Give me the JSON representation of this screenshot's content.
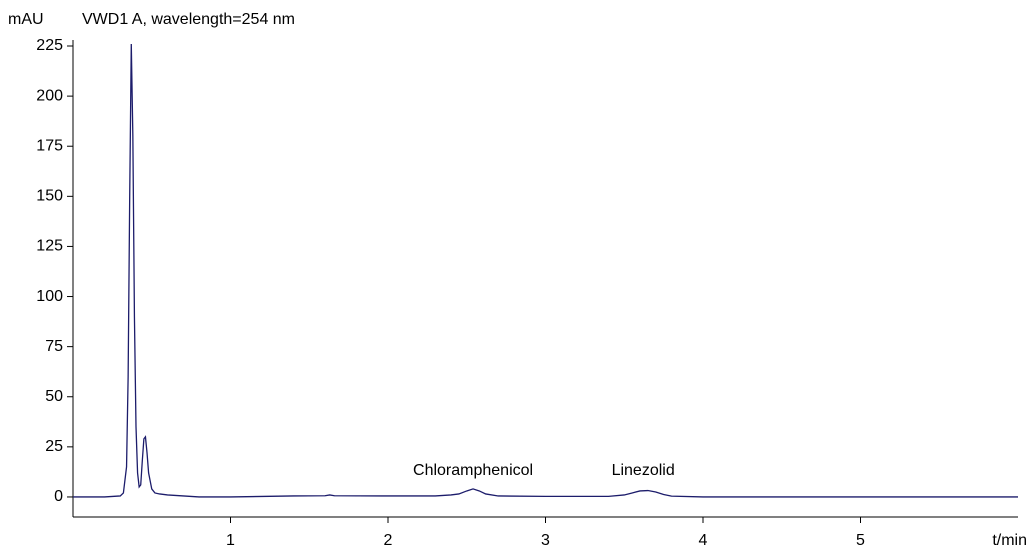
{
  "chart_data": {
    "type": "line",
    "title": "VWD1 A, wavelength=254 nm",
    "y_label": "mAU",
    "x_label": "t/min",
    "xlim": [
      0,
      6
    ],
    "ylim": [
      -10,
      228
    ],
    "xticks": [
      1,
      2,
      3,
      4,
      5
    ],
    "yticks": [
      0,
      25,
      50,
      75,
      100,
      125,
      150,
      175,
      200,
      225
    ],
    "x": [
      0,
      0.2,
      0.3,
      0.32,
      0.34,
      0.35,
      0.36,
      0.37,
      0.38,
      0.39,
      0.4,
      0.41,
      0.42,
      0.43,
      0.44,
      0.45,
      0.46,
      0.47,
      0.48,
      0.5,
      0.52,
      0.55,
      0.6,
      0.7,
      0.8,
      1.0,
      1.4,
      1.6,
      1.63,
      1.66,
      2.0,
      2.3,
      2.4,
      2.45,
      2.5,
      2.54,
      2.58,
      2.62,
      2.7,
      3.0,
      3.4,
      3.5,
      3.55,
      3.6,
      3.65,
      3.7,
      3.75,
      3.8,
      4.0,
      5.0,
      6.0
    ],
    "series": [
      {
        "color": "#1c1c6b",
        "values": [
          0,
          0,
          0.5,
          2,
          15,
          60,
          150,
          226,
          180,
          90,
          35,
          12,
          5,
          6,
          18,
          29,
          30,
          22,
          12,
          4,
          2,
          1.5,
          1,
          0.5,
          0,
          0,
          0.5,
          0.6,
          1,
          0.6,
          0.5,
          0.5,
          1,
          1.5,
          3,
          4,
          3,
          1.5,
          0.5,
          0.3,
          0.3,
          1,
          2,
          3,
          3.2,
          2.5,
          1.2,
          0.4,
          0,
          0,
          0
        ]
      }
    ],
    "annotations": [
      {
        "text": "Chloramphenicol",
        "x": 2.54
      },
      {
        "text": "Linezolid",
        "x": 3.62
      }
    ]
  }
}
